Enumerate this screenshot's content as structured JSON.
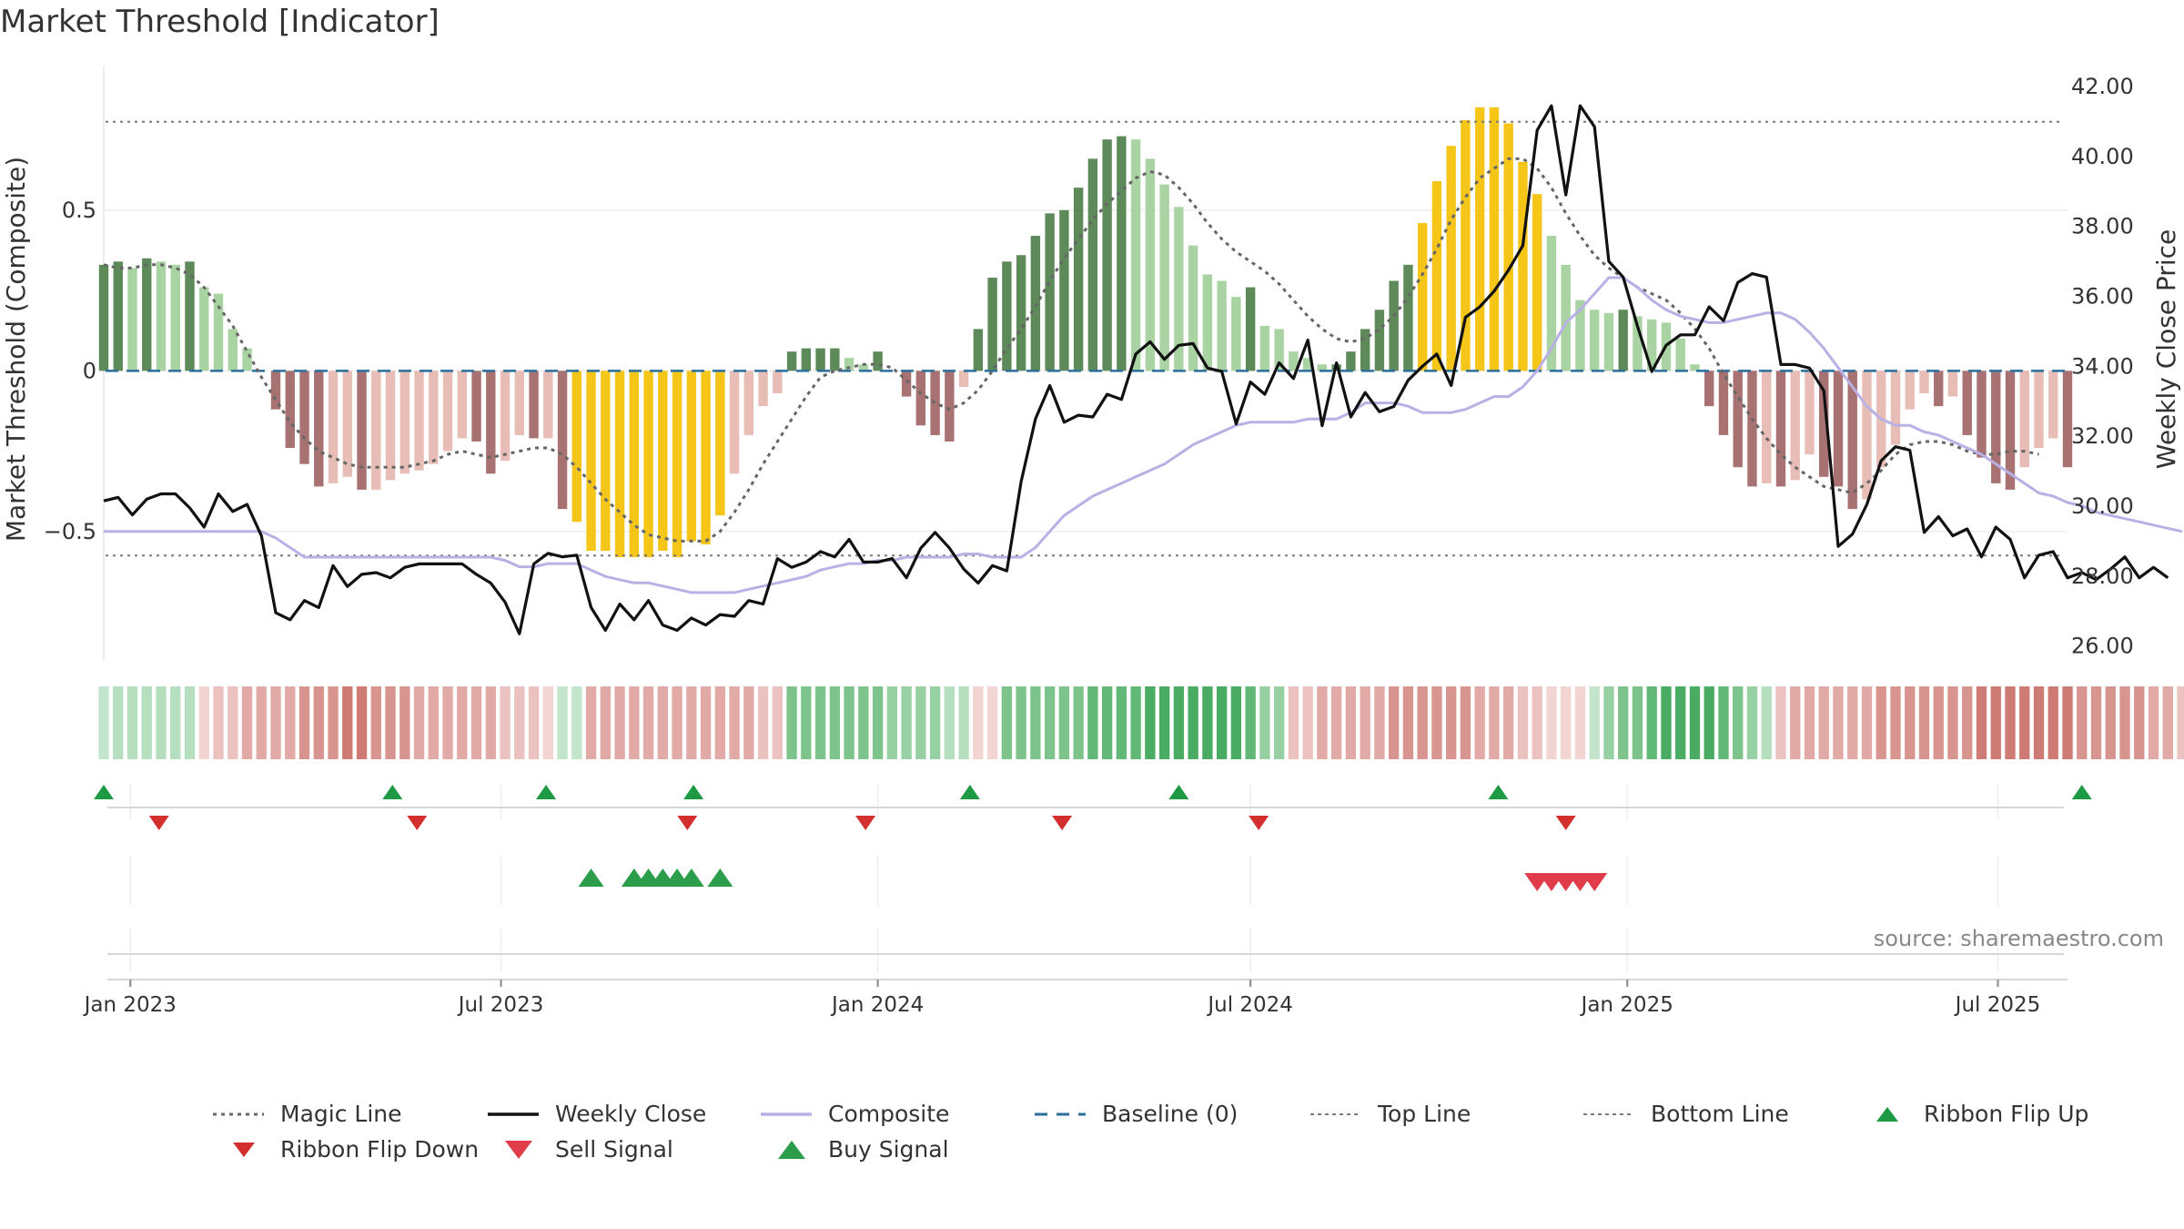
{
  "title": "Market Threshold [Indicator]",
  "source": "source: sharemaestro.com",
  "chart_data": {
    "type": "bar",
    "start_date": "2022-12-19",
    "ylabel_left": "Market Threshold (Composite)",
    "ylabel_right": "Weekly Close Price",
    "yticks_left": [
      "0.5",
      "0",
      "−0.5"
    ],
    "yticks_right": [
      "42.00",
      "40.00",
      "38.00",
      "36.00",
      "34.00",
      "32.00",
      "30.00",
      "28.00",
      "26.00"
    ],
    "x_ticks": [
      "Jan 2023",
      "Jul 2023",
      "Jan 2024",
      "Jul 2024",
      "Jan 2025",
      "Jul 2025"
    ],
    "ylim_left": [
      -0.9,
      0.95
    ],
    "ylim_right": [
      25.6,
      42.6
    ],
    "top_line": 0.775,
    "bottom_line": -0.575,
    "bars": [
      0.33,
      0.34,
      0.32,
      0.35,
      0.34,
      0.33,
      0.34,
      0.26,
      0.24,
      0.13,
      0.07,
      0.0,
      -0.12,
      -0.24,
      -0.29,
      -0.36,
      -0.35,
      -0.33,
      -0.37,
      -0.37,
      -0.34,
      -0.32,
      -0.31,
      -0.29,
      -0.25,
      -0.21,
      -0.22,
      -0.32,
      -0.28,
      -0.2,
      -0.21,
      -0.21,
      -0.43,
      -0.47,
      -0.56,
      -0.56,
      -0.58,
      -0.58,
      -0.58,
      -0.56,
      -0.58,
      -0.53,
      -0.54,
      -0.45,
      -0.32,
      -0.2,
      -0.11,
      -0.07,
      0.06,
      0.07,
      0.07,
      0.07,
      0.04,
      0.02,
      0.06,
      0.0,
      -0.08,
      -0.17,
      -0.2,
      -0.22,
      -0.05,
      0.13,
      0.29,
      0.34,
      0.36,
      0.42,
      0.49,
      0.5,
      0.57,
      0.66,
      0.72,
      0.73,
      0.72,
      0.66,
      0.58,
      0.51,
      0.39,
      0.3,
      0.28,
      0.23,
      0.26,
      0.14,
      0.13,
      0.06,
      0.04,
      0.02,
      0.02,
      0.06,
      0.13,
      0.19,
      0.28,
      0.33,
      0.46,
      0.59,
      0.7,
      0.78,
      0.82,
      0.82,
      0.77,
      0.65,
      0.55,
      0.42,
      0.33,
      0.22,
      0.19,
      0.18,
      0.19,
      0.17,
      0.16,
      0.15,
      0.1,
      0.02,
      -0.11,
      -0.2,
      -0.3,
      -0.36,
      -0.35,
      -0.36,
      -0.34,
      -0.26,
      -0.33,
      -0.36,
      -0.43,
      -0.4,
      -0.3,
      -0.23,
      -0.12,
      -0.07,
      -0.11,
      -0.08,
      -0.2,
      -0.27,
      -0.35,
      -0.37,
      -0.3,
      -0.24,
      -0.21,
      -0.3
    ],
    "weekly_close": [
      30.15,
      30.25,
      29.75,
      30.2,
      30.35,
      30.35,
      29.95,
      29.4,
      30.35,
      29.85,
      30.05,
      29.15,
      26.95,
      26.75,
      27.3,
      27.1,
      28.3,
      27.7,
      28.05,
      28.1,
      27.95,
      28.25,
      28.35,
      28.35,
      28.35,
      28.35,
      28.05,
      27.8,
      27.25,
      26.35,
      28.35,
      28.65,
      28.55,
      28.6,
      27.1,
      26.45,
      27.2,
      26.75,
      27.3,
      26.6,
      26.45,
      26.8,
      26.6,
      26.9,
      26.85,
      27.3,
      27.2,
      28.5,
      28.25,
      28.4,
      28.7,
      28.55,
      29.05,
      28.4,
      28.4,
      28.5,
      27.95,
      28.8,
      29.25,
      28.8,
      28.2,
      27.8,
      28.3,
      28.15,
      30.7,
      32.5,
      33.45,
      32.4,
      32.6,
      32.55,
      33.2,
      33.05,
      34.35,
      34.7,
      34.2,
      34.6,
      34.65,
      33.95,
      33.85,
      32.35,
      33.55,
      33.2,
      34.1,
      33.65,
      34.75,
      32.3,
      34.1,
      32.55,
      33.25,
      32.7,
      32.85,
      33.6,
      34.0,
      34.35,
      33.45,
      35.4,
      35.7,
      36.15,
      36.75,
      37.45,
      40.75,
      41.45,
      38.9,
      41.45,
      40.85,
      37.0,
      36.55,
      35.15,
      33.85,
      34.6,
      34.9,
      34.9,
      35.7,
      35.3,
      36.4,
      36.65,
      36.55,
      34.05,
      34.05,
      33.95,
      33.3,
      28.85,
      29.2,
      30.05,
      31.3,
      31.7,
      31.6,
      29.25,
      29.7,
      29.15,
      29.35,
      28.55,
      29.4,
      29.05,
      27.95,
      28.6,
      28.7,
      27.95,
      28.1,
      27.9,
      28.2,
      28.55,
      27.95,
      28.25,
      27.95
    ],
    "composite": [
      -0.5,
      -0.5,
      -0.5,
      -0.5,
      -0.5,
      -0.5,
      -0.5,
      -0.5,
      -0.5,
      -0.5,
      -0.5,
      -0.5,
      -0.52,
      -0.55,
      -0.58,
      -0.58,
      -0.58,
      -0.58,
      -0.58,
      -0.58,
      -0.58,
      -0.58,
      -0.58,
      -0.58,
      -0.58,
      -0.58,
      -0.58,
      -0.58,
      -0.59,
      -0.61,
      -0.61,
      -0.6,
      -0.6,
      -0.6,
      -0.62,
      -0.64,
      -0.65,
      -0.66,
      -0.66,
      -0.67,
      -0.68,
      -0.69,
      -0.69,
      -0.69,
      -0.69,
      -0.68,
      -0.67,
      -0.66,
      -0.65,
      -0.64,
      -0.62,
      -0.61,
      -0.6,
      -0.6,
      -0.59,
      -0.59,
      -0.58,
      -0.58,
      -0.58,
      -0.58,
      -0.57,
      -0.57,
      -0.58,
      -0.58,
      -0.58,
      -0.55,
      -0.5,
      -0.45,
      -0.42,
      -0.39,
      -0.37,
      -0.35,
      -0.33,
      -0.31,
      -0.29,
      -0.26,
      -0.23,
      -0.21,
      -0.19,
      -0.17,
      -0.16,
      -0.16,
      -0.16,
      -0.16,
      -0.15,
      -0.15,
      -0.15,
      -0.13,
      -0.1,
      -0.1,
      -0.1,
      -0.11,
      -0.13,
      -0.13,
      -0.13,
      -0.12,
      -0.1,
      -0.08,
      -0.08,
      -0.05,
      0.0,
      0.07,
      0.15,
      0.19,
      0.24,
      0.29,
      0.29,
      0.26,
      0.22,
      0.19,
      0.17,
      0.16,
      0.15,
      0.15,
      0.16,
      0.17,
      0.18,
      0.18,
      0.16,
      0.12,
      0.07,
      0.01,
      -0.05,
      -0.11,
      -0.15,
      -0.17,
      -0.17,
      -0.19,
      -0.2,
      -0.22,
      -0.24,
      -0.26,
      -0.29,
      -0.32,
      -0.35,
      -0.38,
      -0.39,
      -0.41,
      -0.42,
      -0.44,
      -0.45,
      -0.46,
      -0.47,
      -0.48,
      -0.49,
      -0.5
    ],
    "magic_line": [
      0.33,
      0.32,
      0.32,
      0.33,
      0.33,
      0.32,
      0.3,
      0.26,
      0.2,
      0.14,
      0.06,
      -0.02,
      -0.09,
      -0.16,
      -0.21,
      -0.25,
      -0.27,
      -0.29,
      -0.3,
      -0.3,
      -0.3,
      -0.3,
      -0.29,
      -0.28,
      -0.26,
      -0.25,
      -0.26,
      -0.27,
      -0.26,
      -0.25,
      -0.24,
      -0.24,
      -0.26,
      -0.3,
      -0.35,
      -0.4,
      -0.44,
      -0.48,
      -0.51,
      -0.52,
      -0.53,
      -0.53,
      -0.53,
      -0.5,
      -0.44,
      -0.37,
      -0.29,
      -0.22,
      -0.15,
      -0.08,
      -0.02,
      0.0,
      0.01,
      0.02,
      0.02,
      0.01,
      -0.03,
      -0.07,
      -0.1,
      -0.12,
      -0.1,
      -0.06,
      0.0,
      0.07,
      0.13,
      0.2,
      0.28,
      0.35,
      0.41,
      0.47,
      0.52,
      0.56,
      0.6,
      0.62,
      0.61,
      0.57,
      0.52,
      0.46,
      0.41,
      0.37,
      0.34,
      0.31,
      0.27,
      0.22,
      0.17,
      0.13,
      0.1,
      0.09,
      0.1,
      0.13,
      0.17,
      0.23,
      0.3,
      0.38,
      0.47,
      0.54,
      0.6,
      0.63,
      0.66,
      0.66,
      0.63,
      0.57,
      0.49,
      0.42,
      0.36,
      0.32,
      0.29,
      0.26,
      0.24,
      0.22,
      0.18,
      0.13,
      0.07,
      -0.01,
      -0.08,
      -0.15,
      -0.21,
      -0.26,
      -0.3,
      -0.33,
      -0.36,
      -0.37,
      -0.38,
      -0.35,
      -0.31,
      -0.26,
      -0.23,
      -0.22,
      -0.22,
      -0.23,
      -0.25,
      -0.26,
      -0.26,
      -0.25,
      -0.25,
      -0.26
    ],
    "ribbon": [
      1,
      2,
      2,
      2,
      2,
      2,
      2,
      -1,
      -2,
      -2,
      -3,
      -3,
      -3,
      -3,
      -4,
      -4,
      -4,
      -5,
      -5,
      -4,
      -4,
      -4,
      -3,
      -3,
      -3,
      -3,
      -3,
      -3,
      -2,
      -2,
      -2,
      -1,
      1,
      1,
      -3,
      -3,
      -3,
      -3,
      -3,
      -3,
      -3,
      -3,
      -3,
      -3,
      -3,
      -3,
      -2,
      -2,
      4,
      4,
      4,
      4,
      4,
      4,
      4,
      3,
      3,
      3,
      3,
      2,
      2,
      -1,
      -1,
      4,
      4,
      4,
      4,
      4,
      4,
      5,
      5,
      5,
      5,
      6,
      6,
      6,
      6,
      6,
      6,
      6,
      5,
      3,
      3,
      -2,
      -2,
      -3,
      -3,
      -3,
      -3,
      -3,
      -4,
      -4,
      -4,
      -4,
      -4,
      -4,
      -3,
      -3,
      -3,
      -2,
      -2,
      -1,
      -1,
      -1,
      1,
      3,
      4,
      4,
      5,
      6,
      6,
      6,
      6,
      5,
      4,
      3,
      2,
      -2,
      -3,
      -3,
      -3,
      -3,
      -3,
      -3,
      -4,
      -4,
      -4,
      -4,
      -4,
      -4,
      -4,
      -5,
      -5,
      -5,
      -5,
      -5,
      -5,
      -5,
      -4,
      -4,
      -4,
      -4,
      -4,
      -3,
      -3,
      -2,
      -2,
      2,
      2,
      2,
      2,
      -1,
      -1,
      -1,
      -1,
      -1,
      -1
    ],
    "ribbon_flip_up": [
      0,
      47,
      72,
      96,
      141,
      175,
      227,
      322
    ],
    "ribbon_flip_down": [
      9,
      51,
      95,
      124,
      156,
      188,
      238
    ],
    "buy_signal": [
      34,
      37,
      38,
      39,
      40,
      41,
      43
    ],
    "sell_signal": [
      100,
      101,
      102,
      103,
      104
    ],
    "legend": [
      {
        "label": "Magic Line",
        "kind": "dotted",
        "color": "#666666"
      },
      {
        "label": "Weekly Close",
        "kind": "solid",
        "color": "#111111"
      },
      {
        "label": "Composite",
        "kind": "solid",
        "color": "#b9b1e6"
      },
      {
        "label": "Baseline (0)",
        "kind": "dashed",
        "color": "#2a6f9e"
      },
      {
        "label": "Top Line",
        "kind": "dotted-thin",
        "color": "#7a7a7a"
      },
      {
        "label": "Bottom Line",
        "kind": "dotted-thin",
        "color": "#7a7a7a"
      },
      {
        "label": "Ribbon Flip Up",
        "kind": "tri-up",
        "color": "#1f9a44"
      },
      {
        "label": "Ribbon Flip Down",
        "kind": "tri-down",
        "color": "#d32f2f"
      },
      {
        "label": "Sell Signal",
        "kind": "tri-down-big",
        "color": "#e03c4a"
      },
      {
        "label": "Buy Signal",
        "kind": "tri-up-big",
        "color": "#2c9e4b"
      }
    ],
    "colors": {
      "bar_pos_dark": "#5e8a5a",
      "bar_pos_light": "#a9d3a2",
      "bar_neg_dark": "#a87272",
      "bar_neg_light": "#e8bdb6",
      "bar_extreme": "#f5c518",
      "grid": "#eeeeee"
    }
  }
}
